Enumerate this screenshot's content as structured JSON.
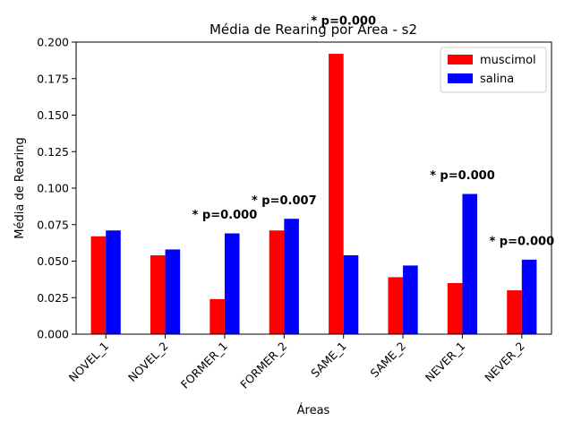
{
  "chart_data": {
    "type": "bar",
    "title": "Média de Rearing por Área - s2",
    "xlabel": "Áreas",
    "ylabel": "Média de Rearing",
    "ylim": [
      0,
      0.2
    ],
    "yticks": [
      "0.000",
      "0.025",
      "0.050",
      "0.075",
      "0.100",
      "0.125",
      "0.150",
      "0.175",
      "0.200"
    ],
    "categories": [
      "NOVEL_1",
      "NOVEL_2",
      "FORMER_1",
      "FORMER_2",
      "SAME_1",
      "SAME_2",
      "NEVER_1",
      "NEVER_2"
    ],
    "series": [
      {
        "name": "muscimol",
        "color": "#ff0000",
        "values": [
          0.067,
          0.054,
          0.024,
          0.071,
          0.192,
          0.039,
          0.035,
          0.03
        ]
      },
      {
        "name": "salina",
        "color": "#0000ff",
        "values": [
          0.071,
          0.058,
          0.069,
          0.079,
          0.054,
          0.047,
          0.096,
          0.051
        ]
      }
    ],
    "annotations": [
      {
        "text": "* p=0.000",
        "category": "FORMER_1",
        "y": 0.079
      },
      {
        "text": "* p=0.007",
        "category": "FORMER_2",
        "y": 0.089
      },
      {
        "text": "* p=0.000",
        "category": "SAME_1",
        "y": 0.212
      },
      {
        "text": "* p=0.000",
        "category": "NEVER_1",
        "y": 0.106
      },
      {
        "text": "* p=0.000",
        "category": "NEVER_2",
        "y": 0.061
      }
    ],
    "legend": {
      "position": "top-right"
    },
    "grid": false
  }
}
